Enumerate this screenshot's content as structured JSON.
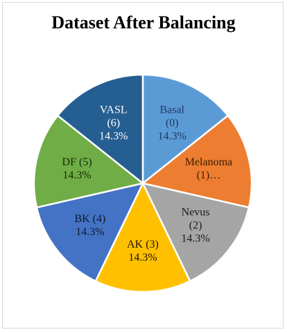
{
  "chart_data": {
    "type": "pie",
    "title": "Dataset After Balancing",
    "slices": [
      {
        "label": "Basal",
        "class_id": "(0)",
        "value": 14.3,
        "display": "14.3%",
        "color": "#5b9bd5",
        "text_color": "#1f3864",
        "lines": [
          "Basal",
          "(0)",
          "14.3%"
        ]
      },
      {
        "label": "Melanoma",
        "class_id": "(1)…",
        "value": 14.3,
        "display": "",
        "color": "#ed7d31",
        "text_color": "#3a1d00",
        "lines": [
          "Melanoma",
          "(1)…"
        ]
      },
      {
        "label": "Nevus",
        "class_id": "(2)",
        "value": 14.3,
        "display": "14.3%",
        "color": "#a5a5a5",
        "text_color": "#1a1a1a",
        "lines": [
          "Nevus",
          "(2)",
          "14.3%"
        ]
      },
      {
        "label": "AK",
        "class_id": "(3)",
        "value": 14.3,
        "display": "14.3%",
        "color": "#ffc000",
        "text_color": "#1a1400",
        "lines": [
          "AK (3)",
          "14.3%"
        ]
      },
      {
        "label": "BK",
        "class_id": "(4)",
        "value": 14.3,
        "display": "14.3%",
        "color": "#4472c4",
        "text_color": "#0d1a33",
        "lines": [
          "BK (4)",
          "14.3%"
        ]
      },
      {
        "label": "DF",
        "class_id": "(5)",
        "value": 14.3,
        "display": "14.3%",
        "color": "#70ad47",
        "text_color": "#132b05",
        "lines": [
          "DF (5)",
          "14.3%"
        ]
      },
      {
        "label": "VASL",
        "class_id": "(6)",
        "value": 14.3,
        "display": "14.3%",
        "color": "#255e91",
        "text_color": "#ffffff",
        "lines": [
          "VASL",
          "(6)",
          "14.3%"
        ]
      }
    ]
  }
}
